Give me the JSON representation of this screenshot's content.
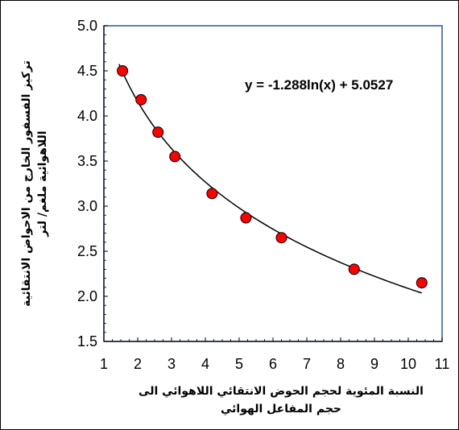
{
  "chart_data": {
    "type": "scatter",
    "x": [
      1.55,
      2.1,
      2.6,
      3.1,
      4.2,
      5.2,
      6.25,
      8.4,
      10.4
    ],
    "y": [
      4.5,
      4.18,
      3.82,
      3.55,
      3.14,
      2.87,
      2.65,
      2.3,
      2.15
    ],
    "xlabel_lines": [
      "النسبة المئوية لحجم الحوض الانتقائي اللاهوائي الى",
      "حجم المفاعل الهوائي"
    ],
    "ylabel_lines": [
      "تركيز الفسفور الخارج من الاحواض الانتقائية",
      "اللاهوائية ملغم/ لتر"
    ],
    "xlim": [
      1,
      11
    ],
    "ylim": [
      1.5,
      5.0
    ],
    "xticks": [
      1,
      2,
      3,
      4,
      5,
      6,
      7,
      8,
      9,
      10,
      11
    ],
    "yticks": [
      "1.5",
      "2.0",
      "2.5",
      "3.0",
      "3.5",
      "4.0",
      "4.5",
      "5.0"
    ],
    "trendline": {
      "type": "logarithmic",
      "a": -1.288,
      "b": 5.0527,
      "equation": "y = -1.288ln(x) + 5.0527",
      "x_range": [
        1.45,
        10.4
      ]
    },
    "grid": false,
    "colors": {
      "marker": "#ff0000",
      "marker_edge": "#000000",
      "plot_border": "#2f5597",
      "line": "#000000"
    }
  }
}
